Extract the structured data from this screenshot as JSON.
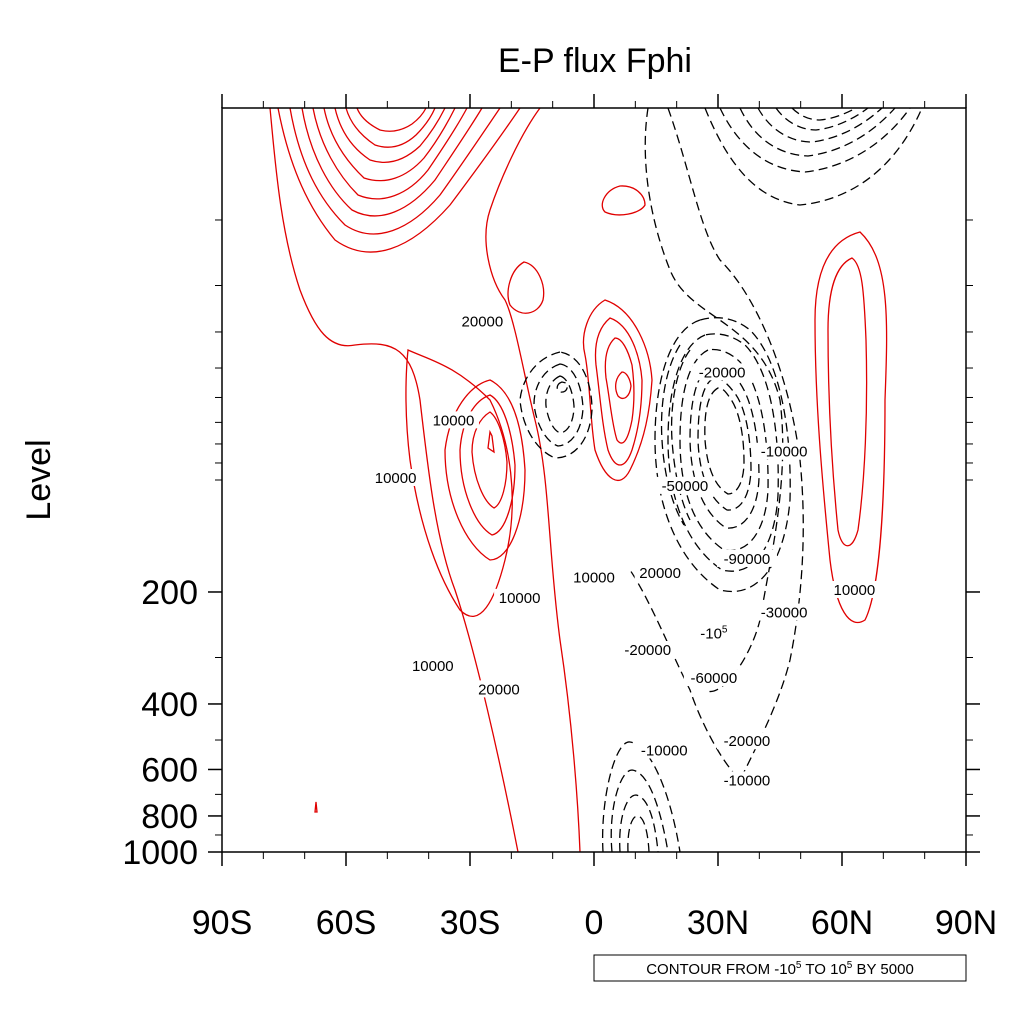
{
  "chart_data": {
    "type": "contour",
    "title": "E-P flux Fphi",
    "xlabel": "",
    "ylabel": "Level",
    "x_ticks": [
      "90S",
      "60S",
      "30S",
      "0",
      "30N",
      "60N",
      "90N"
    ],
    "x_tick_values": [
      -90,
      -60,
      -30,
      0,
      30,
      60,
      90
    ],
    "y_ticks": [
      "200",
      "400",
      "600",
      "800",
      "1000"
    ],
    "y_tick_values": [
      200,
      400,
      600,
      800,
      1000
    ],
    "xlim": [
      -90,
      90
    ],
    "ylim": [
      1000,
      10
    ],
    "y_scale": "log",
    "info_label": {
      "prefix": "CONTOUR FROM -10",
      "sup1": "5",
      "mid": " TO 10",
      "sup2": "5",
      "suffix": " BY 5000"
    },
    "contour_interval": 5000,
    "contour_range": [
      -100000,
      100000
    ],
    "colors": {
      "positive": "#e00000",
      "negative": "#000000"
    },
    "contour_labels": [
      {
        "text": "20000",
        "lat": -27,
        "p": 38
      },
      {
        "text": "10000",
        "lat": -34,
        "p": 70
      },
      {
        "text": "10000",
        "lat": -48,
        "p": 100
      },
      {
        "text": "10000",
        "lat": -18,
        "p": 210
      },
      {
        "text": "10000",
        "lat": 0,
        "p": 185
      },
      {
        "text": "10000",
        "lat": -39,
        "p": 320
      },
      {
        "text": "20000",
        "lat": -23,
        "p": 370
      },
      {
        "text": "20000",
        "lat": 16,
        "p": 180
      },
      {
        "text": "-20000",
        "lat": 31,
        "p": 52
      },
      {
        "text": "-10000",
        "lat": 46,
        "p": 85
      },
      {
        "text": "-50000",
        "lat": 22,
        "p": 105
      },
      {
        "text": "-90000",
        "lat": 37,
        "p": 165
      },
      {
        "text": "-30000",
        "lat": 46,
        "p": 230
      },
      {
        "text": "-20000",
        "lat": 13,
        "p": 290
      },
      {
        "text": "-10",
        "sup": "5",
        "lat": 29,
        "p": 262
      },
      {
        "text": "-60000",
        "lat": 29,
        "p": 345
      },
      {
        "text": "-20000",
        "lat": 37,
        "p": 510
      },
      {
        "text": "-10000",
        "lat": 17,
        "p": 540
      },
      {
        "text": "-10000",
        "lat": 37,
        "p": 650
      },
      {
        "text": "10000",
        "lat": 63,
        "p": 200
      }
    ]
  }
}
